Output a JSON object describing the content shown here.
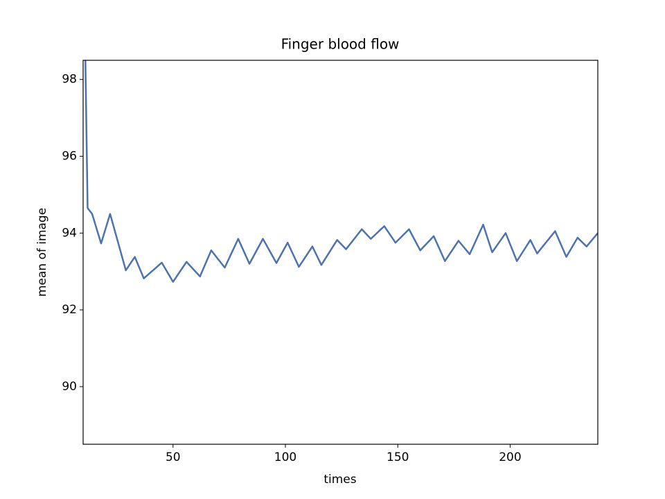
{
  "chart_data": {
    "type": "line",
    "title": "Finger blood flow",
    "x_label": "times",
    "y_label": "mean of image",
    "x": [
      10,
      12,
      14,
      18,
      22,
      29,
      33,
      37,
      45,
      50,
      56,
      62,
      67,
      73,
      79,
      84,
      90,
      96,
      101,
      106,
      112,
      116,
      123,
      127,
      134,
      138,
      144,
      149,
      155,
      160,
      166,
      171,
      177,
      182,
      188,
      192,
      198,
      203,
      209,
      212,
      220,
      225,
      230,
      234,
      239
    ],
    "series": [
      {
        "color": "#4c72b0",
        "values": [
          102.4,
          94.65,
          94.5,
          93.73,
          94.5,
          93.03,
          93.38,
          92.82,
          93.23,
          92.73,
          93.25,
          92.87,
          93.55,
          93.1,
          93.85,
          93.2,
          93.85,
          93.22,
          93.75,
          93.12,
          93.65,
          93.17,
          93.82,
          93.58,
          94.1,
          93.85,
          94.18,
          93.75,
          94.1,
          93.55,
          93.92,
          93.27,
          93.8,
          93.45,
          94.22,
          93.5,
          94.0,
          93.27,
          93.82,
          93.47,
          94.05,
          93.38,
          93.88,
          93.65,
          94.0
        ]
      }
    ],
    "xlim": [
      10,
      239
    ],
    "xticks": [
      50,
      100,
      150,
      200
    ],
    "ylim": [
      88.5,
      98.5
    ],
    "yticks": [
      90,
      92,
      94,
      96,
      98
    ],
    "grid": false
  }
}
